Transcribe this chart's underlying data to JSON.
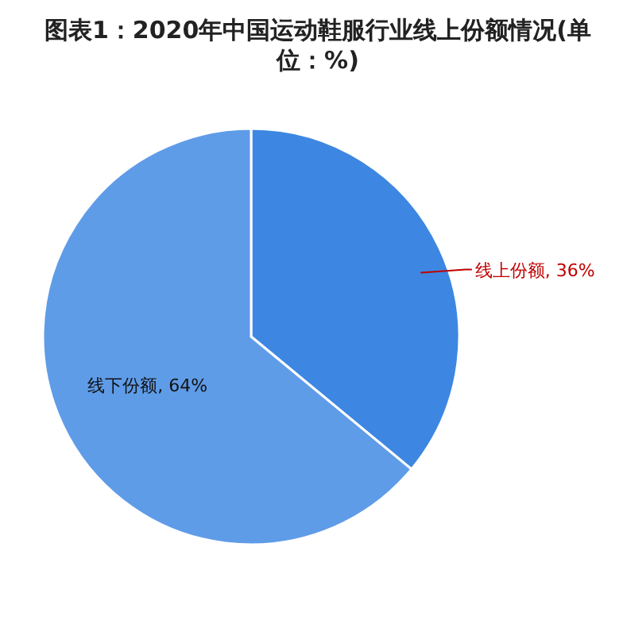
{
  "chart_data": {
    "type": "pie",
    "title": "图表1：2020年中国运动鞋服行业线上份额情况(单位：%)",
    "categories": [
      "线上份额",
      "线下份额"
    ],
    "values": [
      36,
      64
    ],
    "colors": [
      "#3d87e2",
      "#5f9ce8"
    ],
    "value_labels": [
      "36%",
      "64%"
    ]
  }
}
